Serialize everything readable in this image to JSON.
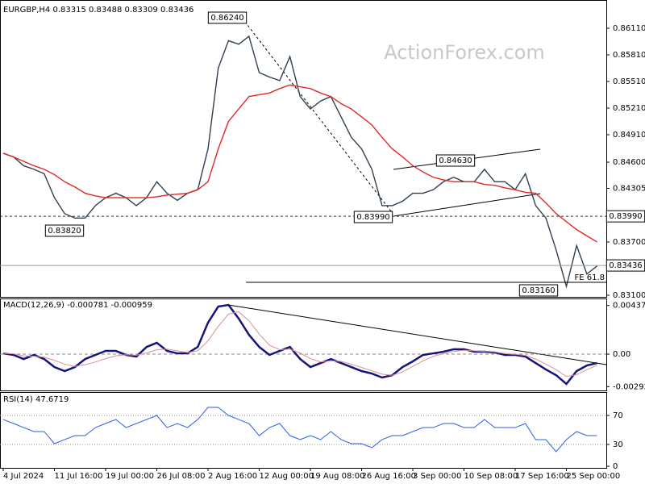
{
  "watermark": "ActionForex.com",
  "chart_data": [
    {
      "type": "line",
      "title": "EURGBP,H4 0.83315 0.83488 0.83309 0.83436",
      "ylim": [
        0.83082,
        0.86383
      ],
      "yticks": [
        {
          "value": 0.8611,
          "label": "0.86110"
        },
        {
          "value": 0.8581,
          "label": "0.85810"
        },
        {
          "value": 0.8551,
          "label": "0.85510"
        },
        {
          "value": 0.8521,
          "label": "0.85210"
        },
        {
          "value": 0.8491,
          "label": "0.84910"
        },
        {
          "value": 0.846,
          "label": "0.84600"
        },
        {
          "value": 0.84305,
          "label": "0.84305"
        },
        {
          "value": 0.837,
          "label": "0.83700"
        },
        {
          "value": 0.831,
          "label": "0.83100"
        }
      ],
      "series": [
        {
          "color": "#2f4050",
          "values": [
            0.847,
            0.8466,
            0.8456,
            0.8452,
            0.8447,
            0.842,
            0.8402,
            0.8397,
            0.8397,
            0.8411,
            0.842,
            0.8425,
            0.842,
            0.8411,
            0.842,
            0.8438,
            0.8425,
            0.8417,
            0.8425,
            0.8429,
            0.8475,
            0.8566,
            0.8597,
            0.8593,
            0.8602,
            0.8561,
            0.8556,
            0.8552,
            0.8579,
            0.8534,
            0.852,
            0.8529,
            0.8534,
            0.8511,
            0.8488,
            0.8475,
            0.8452,
            0.8411,
            0.8411,
            0.8416,
            0.8425,
            0.8425,
            0.8429,
            0.8438,
            0.8443,
            0.8438,
            0.8438,
            0.8452,
            0.8438,
            0.8438,
            0.8429,
            0.8447,
            0.8411,
            0.8397,
            0.8361,
            0.832,
            0.8366,
            0.8334,
            0.8343
          ]
        },
        {
          "color": "#e02828",
          "values": [
            0.847,
            0.8466,
            0.8461,
            0.8456,
            0.8452,
            0.8446,
            0.8438,
            0.8432,
            0.8425,
            0.8422,
            0.842,
            0.842,
            0.842,
            0.842,
            0.842,
            0.8421,
            0.8423,
            0.8424,
            0.8425,
            0.8429,
            0.8438,
            0.8475,
            0.8506,
            0.852,
            0.8534,
            0.8536,
            0.8538,
            0.8543,
            0.8547,
            0.8545,
            0.8543,
            0.8538,
            0.8534,
            0.8526,
            0.852,
            0.8511,
            0.8502,
            0.8488,
            0.8475,
            0.8466,
            0.8456,
            0.8449,
            0.8443,
            0.844,
            0.8438,
            0.8438,
            0.8438,
            0.8435,
            0.8434,
            0.8431,
            0.8429,
            0.8426,
            0.8425,
            0.8414,
            0.8402,
            0.8393,
            0.8384,
            0.8377,
            0.837
          ]
        }
      ],
      "point_labels": [
        "0.86240",
        "0.83820",
        "0.83990",
        "0.84630",
        "0.83160"
      ],
      "levels": [
        {
          "value": 0.8399,
          "label": "0.83990",
          "style": "dashed"
        },
        {
          "value": 0.83436,
          "label": "0.83436",
          "style": "solid"
        },
        {
          "value": 0.83246,
          "label": "FE 61.8",
          "style": "fe"
        }
      ]
    },
    {
      "type": "line",
      "title": "MACD(12,26,9) -0.000781 -0.000959",
      "ylim": [
        -0.00326,
        0.00493
      ],
      "yticks": [
        0.00437,
        {
          "value": 0,
          "label": "0.00"
        },
        -0.002922
      ],
      "reference_lines": [
        0
      ],
      "series": [
        {
          "color": "#14147a",
          "width": 2.5,
          "values": [
            7e-05,
            -7e-05,
            -0.00044,
            -7e-05,
            -0.00044,
            -0.00116,
            -0.00152,
            -0.00116,
            -0.00044,
            -7e-05,
            0.00029,
            0.00029,
            -7e-05,
            -0.00022,
            0.00065,
            0.00102,
            0.00029,
            7e-05,
            7e-05,
            0.00065,
            0.00283,
            0.00428,
            0.00442,
            0.00319,
            0.00174,
            0.00065,
            -7e-05,
            0.00029,
            0.00065,
            -0.00044,
            -0.00116,
            -0.0008,
            -0.00044,
            -0.0008,
            -0.00116,
            -0.00152,
            -0.00174,
            -0.0021,
            -0.00189,
            -0.00116,
            -0.00065,
            -7e-05,
            7e-05,
            0.00022,
            0.00044,
            0.00044,
            0.00022,
            0.00022,
            0.00015,
            -7e-05,
            -7e-05,
            -0.00022,
            -0.0008,
            -0.00138,
            -0.00189,
            -0.00268,
            -0.00152,
            -0.00102,
            -0.0008
          ]
        },
        {
          "color": "#d89090",
          "width": 1,
          "values": [
            7e-05,
            3e-05,
            -0.00015,
            -0.00019,
            -0.00027,
            -0.00056,
            -0.0009,
            -0.0011,
            -0.00095,
            -0.0007,
            -0.0004,
            -0.00015,
            -5e-05,
            -0.0001,
            0.0001,
            0.0004,
            0.00045,
            0.0003,
            0.00015,
            0.0003,
            0.0012,
            0.0025,
            0.0036,
            0.0038,
            0.003,
            0.0018,
            0.0008,
            0.0004,
            0.00045,
            0.0001,
            -0.0004,
            -0.0007,
            -0.0006,
            -0.00065,
            -0.0009,
            -0.0012,
            -0.0015,
            -0.0018,
            -0.0019,
            -0.0016,
            -0.0011,
            -0.0006,
            -0.0002,
            5e-05,
            0.00025,
            0.00035,
            0.0003,
            0.00025,
            0.0002,
            5e-05,
            -2e-05,
            -0.00012,
            -0.00045,
            -0.0009,
            -0.0014,
            -0.002,
            -0.00185,
            -0.0014,
            -0.001
          ]
        }
      ]
    },
    {
      "type": "line",
      "title": "RSI(14) 47.6719",
      "ylim": [
        0,
        100
      ],
      "yticks": [
        70,
        30,
        0
      ],
      "reference_lines": [
        70,
        30
      ],
      "categories": [
        "4 Jul 2024",
        null,
        null,
        null,
        null,
        "11 Jul 16:00",
        null,
        null,
        null,
        null,
        "19 Jul 00:00",
        null,
        null,
        null,
        null,
        "26 Jul 08:00",
        null,
        null,
        null,
        null,
        "2 Aug 16:00",
        null,
        null,
        null,
        null,
        "12 Aug 00:00",
        null,
        null,
        null,
        null,
        "19 Aug 08:00",
        null,
        null,
        null,
        null,
        "26 Aug 16:00",
        null,
        null,
        null,
        null,
        "3 Sep 00:00",
        null,
        null,
        null,
        null,
        "10 Sep 08:00",
        null,
        null,
        null,
        null,
        "17 Sep 16:00",
        null,
        null,
        null,
        null,
        "25 Sep 00:00",
        null,
        null,
        null
      ],
      "series": [
        {
          "color": "#2a5ee8",
          "width": 1,
          "values": [
            64.4,
            58.9,
            53.3,
            47.8,
            47.8,
            31.1,
            36.7,
            42.2,
            42.2,
            53.3,
            58.9,
            64.4,
            53.3,
            58.9,
            64.4,
            70,
            53.3,
            58.9,
            53.3,
            64.4,
            81.1,
            81.1,
            70,
            64.4,
            58.9,
            42.2,
            53.3,
            58.9,
            42.2,
            36.7,
            42.2,
            36.7,
            47.8,
            36.7,
            31.1,
            31.1,
            25.6,
            36.7,
            42.2,
            42.2,
            47.8,
            53.3,
            53.3,
            58.9,
            58.9,
            53.3,
            53.3,
            64.4,
            53.3,
            53.3,
            53.3,
            58.9,
            36.7,
            36.7,
            20,
            36.7,
            47.8,
            42.2,
            42.2
          ]
        }
      ]
    }
  ]
}
